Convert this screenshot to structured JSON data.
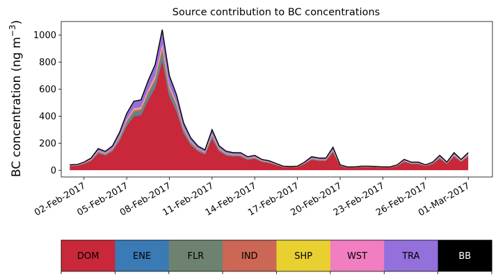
{
  "chart_data": {
    "type": "area",
    "stacked": true,
    "title": "Source contribution to BC concentrations",
    "ylabel_main": "BC concentration (ng m",
    "ylabel_sup": "−3",
    "ylabel_close": ")",
    "xlabel": "",
    "ylim": [
      -50,
      1100
    ],
    "yticks": [
      0,
      200,
      400,
      600,
      800,
      1000
    ],
    "xlim_day": [
      -0.6,
      29.7
    ],
    "xticks": [
      {
        "day": 1,
        "label": "02-Feb-2017"
      },
      {
        "day": 4,
        "label": "05-Feb-2017"
      },
      {
        "day": 7,
        "label": "08-Feb-2017"
      },
      {
        "day": 10,
        "label": "11-Feb-2017"
      },
      {
        "day": 13,
        "label": "14-Feb-2017"
      },
      {
        "day": 16,
        "label": "17-Feb-2017"
      },
      {
        "day": 19,
        "label": "20-Feb-2017"
      },
      {
        "day": 22,
        "label": "23-Feb-2017"
      },
      {
        "day": 25,
        "label": "26-Feb-2017"
      },
      {
        "day": 28,
        "label": "01-Mar-2017"
      }
    ],
    "x_days": [
      0,
      0.5,
      1,
      1.5,
      2,
      2.5,
      3,
      3.5,
      4,
      4.5,
      5,
      5.5,
      6,
      6.5,
      7,
      7.5,
      8,
      8.5,
      9,
      9.5,
      10,
      10.5,
      11,
      11.5,
      12,
      12.5,
      13,
      13.5,
      14,
      14.5,
      15,
      15.5,
      16,
      16.5,
      17,
      17.5,
      18,
      18.5,
      19,
      19.5,
      20,
      20.5,
      21,
      21.5,
      22,
      22.5,
      23,
      23.5,
      24,
      24.5,
      25,
      25.5,
      26,
      26.5,
      27,
      27.5,
      28
    ],
    "total": [
      40,
      42,
      60,
      90,
      160,
      140,
      180,
      280,
      420,
      510,
      520,
      660,
      780,
      1040,
      700,
      560,
      350,
      240,
      180,
      150,
      300,
      180,
      140,
      130,
      130,
      100,
      110,
      80,
      70,
      50,
      30,
      28,
      30,
      60,
      100,
      90,
      90,
      170,
      40,
      25,
      25,
      30,
      30,
      28,
      25,
      25,
      40,
      80,
      60,
      60,
      40,
      60,
      110,
      60,
      130,
      80,
      130
    ],
    "series": [
      {
        "name": "DOM",
        "color": "#c8283a",
        "fraction": 0.78
      },
      {
        "name": "ENE",
        "color": "#3a7ab5",
        "fraction": 0.02
      },
      {
        "name": "FLR",
        "color": "#6e8270",
        "fraction": 0.05
      },
      {
        "name": "IND",
        "color": "#cc6655",
        "fraction": 0.02
      },
      {
        "name": "SHP",
        "color": "#e8d030",
        "fraction": 0.01
      },
      {
        "name": "WST",
        "color": "#f07ec0",
        "fraction": 0.02
      },
      {
        "name": "TRA",
        "color": "#9370db",
        "fraction": 0.1
      }
    ],
    "total_line_color": "#000000",
    "legend": {
      "placement": "bottom",
      "entries": [
        {
          "label": "DOM",
          "color": "#c8283a",
          "text_color": "#000000"
        },
        {
          "label": "ENE",
          "color": "#3a7ab5",
          "text_color": "#000000"
        },
        {
          "label": "FLR",
          "color": "#6e8270",
          "text_color": "#000000"
        },
        {
          "label": "IND",
          "color": "#cc6655",
          "text_color": "#000000"
        },
        {
          "label": "SHP",
          "color": "#e8d030",
          "text_color": "#000000"
        },
        {
          "label": "WST",
          "color": "#f07ec0",
          "text_color": "#000000"
        },
        {
          "label": "TRA",
          "color": "#9370db",
          "text_color": "#000000"
        },
        {
          "label": "BB",
          "color": "#000000",
          "text_color": "#ffffff"
        }
      ]
    }
  }
}
